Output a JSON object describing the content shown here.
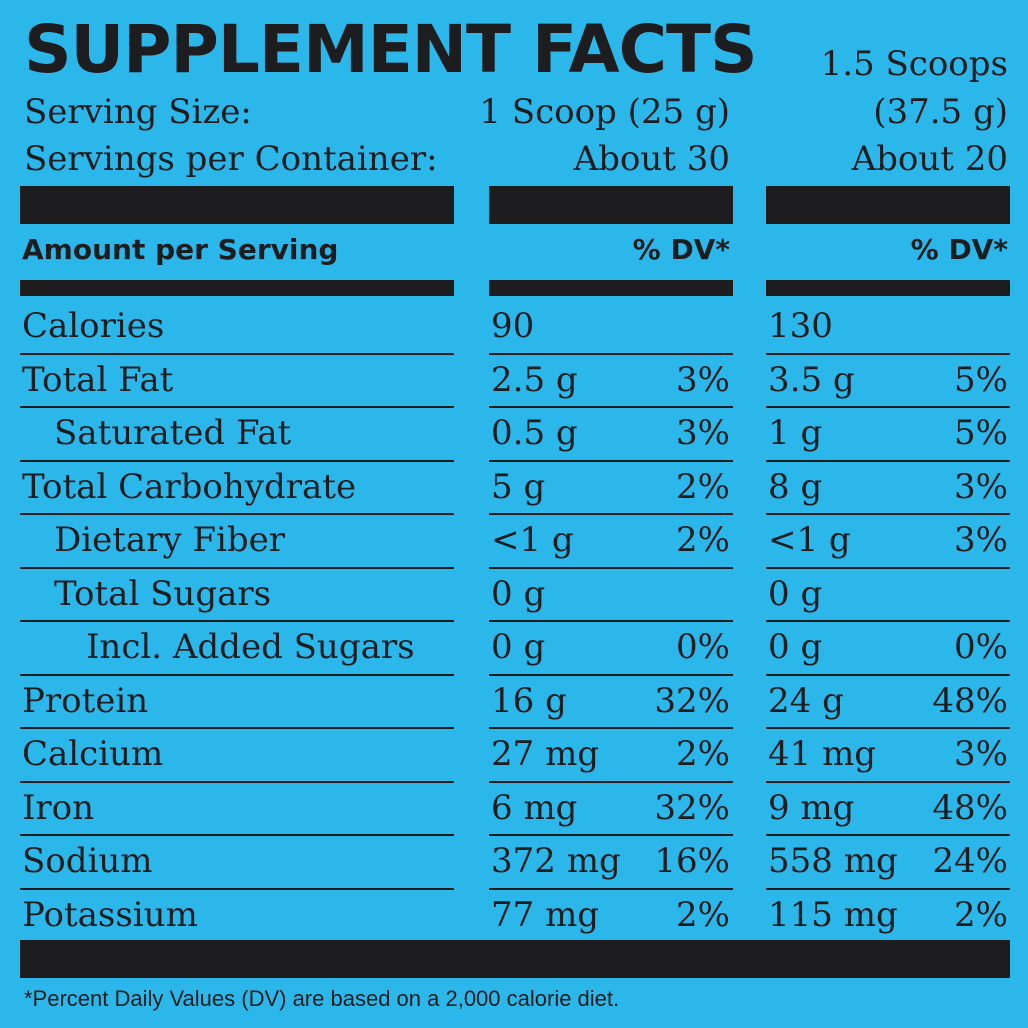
{
  "header": {
    "title": "SUPPLEMENT FACTS",
    "serving_size_label": "Serving Size:",
    "servings_per_container_label": "Servings per Container:",
    "col1_serving_size": "1 Scoop (25 g)",
    "col1_servings": "About 30",
    "col2_serving_line1": "1.5 Scoops",
    "col2_serving_line2": "(37.5 g)",
    "col2_servings": "About 20",
    "amount_per_serving": "Amount per Serving",
    "dv_header_1": "% DV*",
    "dv_header_2": "% DV*"
  },
  "rows": [
    {
      "name": "Calories",
      "indent": 0,
      "amt1": "90",
      "dv1": "",
      "amt2": "130",
      "dv2": ""
    },
    {
      "name": "Total Fat",
      "indent": 0,
      "amt1": "2.5 g",
      "dv1": "3%",
      "amt2": "3.5 g",
      "dv2": "5%"
    },
    {
      "name": "Saturated Fat",
      "indent": 1,
      "amt1": "0.5 g",
      "dv1": "3%",
      "amt2": "1 g",
      "dv2": "5%"
    },
    {
      "name": "Total Carbohydrate",
      "indent": 0,
      "amt1": "5 g",
      "dv1": "2%",
      "amt2": "8 g",
      "dv2": "3%"
    },
    {
      "name": "Dietary Fiber",
      "indent": 1,
      "amt1": "<1 g",
      "dv1": "2%",
      "amt2": "<1 g",
      "dv2": "3%"
    },
    {
      "name": "Total Sugars",
      "indent": 1,
      "amt1": "0 g",
      "dv1": "",
      "amt2": "0 g",
      "dv2": ""
    },
    {
      "name": "Incl. Added Sugars",
      "indent": 2,
      "amt1": "0 g",
      "dv1": "0%",
      "amt2": "0 g",
      "dv2": "0%"
    },
    {
      "name": "Protein",
      "indent": 0,
      "amt1": "16 g",
      "dv1": "32%",
      "amt2": "24 g",
      "dv2": "48%"
    },
    {
      "name": "Calcium",
      "indent": 0,
      "amt1": "27 mg",
      "dv1": "2%",
      "amt2": "41 mg",
      "dv2": "3%"
    },
    {
      "name": "Iron",
      "indent": 0,
      "amt1": "6 mg",
      "dv1": "32%",
      "amt2": "9 mg",
      "dv2": "48%"
    },
    {
      "name": "Sodium",
      "indent": 0,
      "amt1": "372 mg",
      "dv1": "16%",
      "amt2": "558 mg",
      "dv2": "24%"
    },
    {
      "name": "Potassium",
      "indent": 0,
      "amt1": "77 mg",
      "dv1": "2%",
      "amt2": "115 mg",
      "dv2": "2%"
    }
  ],
  "footnote": "*Percent Daily Values (DV) are based on a  2,000 calorie diet.",
  "colors": {
    "background": "#2bb7ea",
    "ink": "#1d1d1f"
  }
}
